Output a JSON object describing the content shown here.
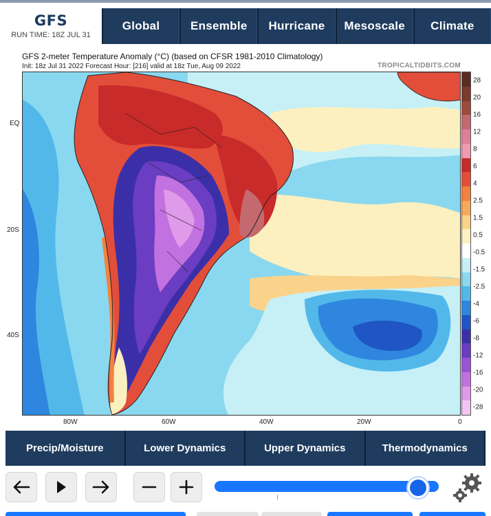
{
  "header": {
    "brand_title": "GFS",
    "run_time": "RUN TIME: 18Z JUL 31"
  },
  "nav": {
    "tabs": [
      "Global",
      "Ensemble",
      "Hurricane",
      "Mesoscale",
      "Climate"
    ]
  },
  "map": {
    "title": "GFS 2-meter Temperature Anomaly (°C) (based on CFSR 1981-2010 Climatology)",
    "init_line": "Init: 18z Jul 31 2022   Forecast Hour: [216]   valid at 18z Tue, Aug 09 2022",
    "credit": "TROPICALTIDBITS.COM",
    "lat_labels": [
      "EQ",
      "20S",
      "40S"
    ],
    "lon_labels": [
      "80W",
      "60W",
      "40W",
      "20W",
      "0"
    ],
    "colorbar": {
      "labels": [
        "28",
        "20",
        "16",
        "12",
        "8",
        "6",
        "4",
        "2.5",
        "1.5",
        "0.5",
        "-0.5",
        "-1.5",
        "-2.5",
        "-4",
        "-6",
        "-8",
        "-12",
        "-16",
        "-20",
        "-28"
      ],
      "colors": [
        "#5a2d22",
        "#7a3a2c",
        "#9c4b3b",
        "#c46a6f",
        "#e07f98",
        "#f19ab0",
        "#c92a2a",
        "#e24e3a",
        "#f2823f",
        "#f7a95a",
        "#fbd28a",
        "#fdf0c0",
        "#ffffff",
        "#c6f0f6",
        "#8ad8ef",
        "#52b8ea",
        "#2f86de",
        "#1f55c4",
        "#3b2fa8",
        "#6a3dc2",
        "#9a52d6",
        "#c271e0",
        "#e09aea",
        "#f2c6f2"
      ]
    }
  },
  "categories": {
    "tabs": [
      "Precip/Moisture",
      "Lower Dynamics",
      "Upper Dynamics",
      "Thermodynamics"
    ]
  },
  "controls": {
    "prev_icon": "arrow-left-icon",
    "play_icon": "play-icon",
    "next_icon": "arrow-right-icon",
    "zoom_out_icon": "minus-icon",
    "zoom_in_icon": "plus-icon",
    "settings_icon": "gear-icon",
    "slider_position": 0.95
  }
}
